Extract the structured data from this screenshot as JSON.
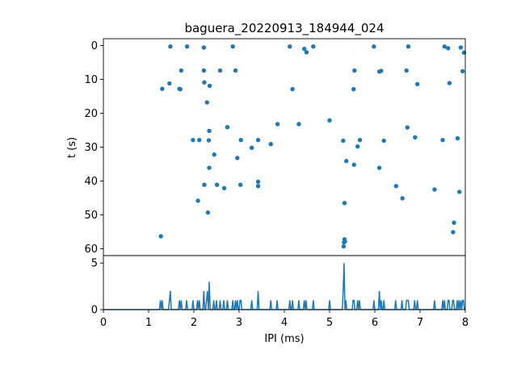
{
  "chart_data": [
    {
      "type": "scatter",
      "title": "baguera_20220913_184944_024",
      "xlabel": "",
      "ylabel": "t (s)",
      "xlim": [
        0,
        8
      ],
      "ylim": [
        62,
        -2
      ],
      "y_inverted": true,
      "xticks": [],
      "yticks": [
        0,
        10,
        20,
        30,
        40,
        50,
        60
      ],
      "ytick_labels": [
        "0",
        "10",
        "20",
        "30",
        "40",
        "50",
        "60"
      ],
      "grid": false,
      "color": "#1f77b4",
      "points": [
        [
          1.48,
          0.3
        ],
        [
          1.85,
          0.3
        ],
        [
          2.22,
          0.6
        ],
        [
          2.86,
          0.3
        ],
        [
          4.12,
          0.3
        ],
        [
          4.44,
          1.0
        ],
        [
          4.49,
          2.0
        ],
        [
          4.64,
          0.3
        ],
        [
          5.98,
          0.3
        ],
        [
          6.74,
          0.3
        ],
        [
          7.54,
          0.3
        ],
        [
          7.62,
          0.8
        ],
        [
          7.9,
          0.6
        ],
        [
          7.97,
          2.1
        ],
        [
          1.72,
          7.4
        ],
        [
          2.22,
          7.4
        ],
        [
          2.58,
          7.4
        ],
        [
          2.92,
          7.4
        ],
        [
          5.55,
          7.4
        ],
        [
          6.1,
          7.7
        ],
        [
          6.14,
          7.5
        ],
        [
          6.7,
          7.4
        ],
        [
          7.94,
          7.6
        ],
        [
          1.3,
          12.8
        ],
        [
          1.46,
          11.2
        ],
        [
          1.68,
          12.8
        ],
        [
          1.7,
          12.9
        ],
        [
          2.23,
          10.9
        ],
        [
          2.35,
          11.9
        ],
        [
          4.18,
          12.9
        ],
        [
          5.53,
          12.9
        ],
        [
          6.94,
          11.4
        ],
        [
          7.65,
          11.1
        ],
        [
          2.29,
          16.8
        ],
        [
          3.85,
          23.2
        ],
        [
          4.32,
          23.2
        ],
        [
          5.0,
          22.1
        ],
        [
          2.74,
          24.1
        ],
        [
          2.34,
          25.2
        ],
        [
          1.98,
          27.9
        ],
        [
          2.12,
          27.9
        ],
        [
          2.33,
          28.0
        ],
        [
          3.04,
          27.9
        ],
        [
          3.42,
          27.9
        ],
        [
          3.28,
          30.2
        ],
        [
          3.7,
          29.1
        ],
        [
          5.3,
          28.1
        ],
        [
          5.62,
          29.8
        ],
        [
          5.67,
          27.9
        ],
        [
          6.2,
          28.1
        ],
        [
          6.72,
          24.2
        ],
        [
          6.89,
          27.1
        ],
        [
          7.5,
          27.9
        ],
        [
          7.83,
          27.4
        ],
        [
          2.45,
          32.2
        ],
        [
          2.96,
          33.2
        ],
        [
          5.37,
          34.1
        ],
        [
          5.54,
          35.2
        ],
        [
          2.34,
          36.1
        ],
        [
          6.1,
          36.1
        ],
        [
          2.23,
          41.1
        ],
        [
          2.51,
          41.1
        ],
        [
          2.67,
          42.1
        ],
        [
          3.03,
          41.1
        ],
        [
          3.42,
          40.2
        ],
        [
          3.42,
          41.5
        ],
        [
          6.47,
          41.5
        ],
        [
          2.09,
          45.8
        ],
        [
          2.31,
          49.3
        ],
        [
          5.33,
          46.5
        ],
        [
          6.61,
          45.1
        ],
        [
          7.32,
          42.5
        ],
        [
          7.87,
          43.2
        ],
        [
          7.75,
          52.3
        ],
        [
          7.73,
          55.1
        ],
        [
          1.27,
          56.3
        ],
        [
          5.33,
          57.2
        ],
        [
          5.32,
          58.1
        ],
        [
          5.34,
          57.8
        ],
        [
          5.31,
          59.3
        ]
      ]
    },
    {
      "type": "line",
      "title": "",
      "xlabel": "IPI (ms)",
      "ylabel": "",
      "xlim": [
        0,
        8
      ],
      "ylim": [
        0,
        5.8
      ],
      "xticks": [
        0,
        1,
        2,
        3,
        4,
        5,
        6,
        7,
        8
      ],
      "xtick_labels": [
        "0",
        "1",
        "2",
        "3",
        "4",
        "5",
        "6",
        "7",
        "8"
      ],
      "yticks": [
        0,
        5
      ],
      "ytick_labels": [
        "0",
        "5"
      ],
      "grid": false,
      "color": "#1f77b4",
      "bin_width": 0.02,
      "series": [
        {
          "name": "",
          "counts": [
            [
              1.26,
              1
            ],
            [
              1.3,
              1
            ],
            [
              1.46,
              1
            ],
            [
              1.48,
              2
            ],
            [
              1.68,
              1
            ],
            [
              1.72,
              1
            ],
            [
              1.84,
              1
            ],
            [
              1.98,
              1
            ],
            [
              2.08,
              1
            ],
            [
              2.12,
              1
            ],
            [
              2.22,
              2
            ],
            [
              2.28,
              1
            ],
            [
              2.3,
              2
            ],
            [
              2.34,
              3
            ],
            [
              2.44,
              1
            ],
            [
              2.5,
              1
            ],
            [
              2.58,
              1
            ],
            [
              2.66,
              1
            ],
            [
              2.74,
              1
            ],
            [
              2.86,
              1
            ],
            [
              2.92,
              1
            ],
            [
              2.96,
              1
            ],
            [
              3.02,
              1
            ],
            [
              3.04,
              1
            ],
            [
              3.28,
              1
            ],
            [
              3.42,
              2
            ],
            [
              3.7,
              1
            ],
            [
              3.84,
              1
            ],
            [
              4.12,
              1
            ],
            [
              4.18,
              1
            ],
            [
              4.32,
              1
            ],
            [
              4.44,
              1
            ],
            [
              4.48,
              1
            ],
            [
              4.64,
              1
            ],
            [
              5.0,
              1
            ],
            [
              5.3,
              2
            ],
            [
              5.32,
              5
            ],
            [
              5.36,
              1
            ],
            [
              5.52,
              1
            ],
            [
              5.54,
              1
            ],
            [
              5.62,
              1
            ],
            [
              5.66,
              1
            ],
            [
              5.98,
              1
            ],
            [
              6.1,
              2
            ],
            [
              6.14,
              1
            ],
            [
              6.2,
              1
            ],
            [
              6.46,
              1
            ],
            [
              6.6,
              1
            ],
            [
              6.7,
              1
            ],
            [
              6.72,
              1
            ],
            [
              6.74,
              1
            ],
            [
              6.88,
              1
            ],
            [
              6.94,
              1
            ],
            [
              7.32,
              1
            ],
            [
              7.5,
              1
            ],
            [
              7.54,
              1
            ],
            [
              7.62,
              1
            ],
            [
              7.64,
              1
            ],
            [
              7.72,
              1
            ],
            [
              7.74,
              1
            ],
            [
              7.82,
              1
            ],
            [
              7.86,
              1
            ],
            [
              7.9,
              1
            ],
            [
              7.94,
              1
            ],
            [
              7.96,
              1
            ]
          ]
        }
      ]
    }
  ]
}
